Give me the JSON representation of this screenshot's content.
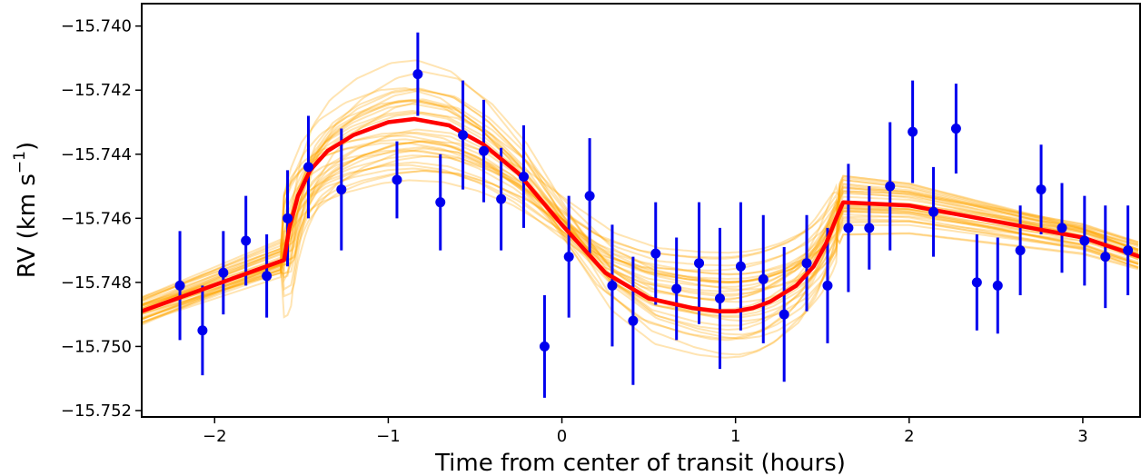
{
  "chart_data": {
    "type": "scatter",
    "xlabel": "Time from center of transit (hours)",
    "ylabel": {
      "main": "RV (km s",
      "sup": "−1",
      "close": ")"
    },
    "xlim": [
      -2.42,
      3.33
    ],
    "ylim": [
      -15.7522,
      -15.7393
    ],
    "xticks": [
      -2,
      -1,
      0,
      1,
      2,
      3
    ],
    "xtick_labels": [
      "−2",
      "−1",
      "0",
      "1",
      "2",
      "3"
    ],
    "yticks": [
      -15.74,
      -15.742,
      -15.744,
      -15.746,
      -15.748,
      -15.75,
      -15.752
    ],
    "ytick_labels": [
      "−15.740",
      "−15.742",
      "−15.744",
      "−15.746",
      "−15.748",
      "−15.750",
      "−15.752"
    ],
    "grid": false,
    "colors": {
      "data": "#0000ee",
      "model": "#ff0000",
      "samples": "#ffa500"
    },
    "series": [
      {
        "kind": "errorbar",
        "x": [
          -2.2,
          -2.07,
          -1.95,
          -1.82,
          -1.7,
          -1.58,
          -1.46,
          -1.27,
          -0.95,
          -0.83,
          -0.7,
          -0.57,
          -0.45,
          -0.35,
          -0.22,
          -0.1,
          0.04,
          0.16,
          0.29,
          0.41,
          0.54,
          0.66,
          0.79,
          0.91,
          1.03,
          1.16,
          1.28,
          1.41,
          1.53,
          1.65,
          1.77,
          1.89,
          2.02,
          2.14,
          2.27,
          2.39,
          2.51,
          2.64,
          2.76,
          2.88,
          3.01,
          3.13,
          3.26
        ],
        "y": [
          -15.7481,
          -15.7495,
          -15.7477,
          -15.7467,
          -15.7478,
          -15.746,
          -15.7444,
          -15.7451,
          -15.7448,
          -15.7415,
          -15.7455,
          -15.7434,
          -15.7439,
          -15.7454,
          -15.7447,
          -15.75,
          -15.7472,
          -15.7453,
          -15.7481,
          -15.7492,
          -15.7471,
          -15.7482,
          -15.7474,
          -15.7485,
          -15.7475,
          -15.7479,
          -15.749,
          -15.7474,
          -15.7481,
          -15.7463,
          -15.7463,
          -15.745,
          -15.7433,
          -15.7458,
          -15.7432,
          -15.748,
          -15.7481,
          -15.747,
          -15.7451,
          -15.7463,
          -15.7467,
          -15.7472,
          -15.747
        ],
        "yerr": [
          0.0017,
          0.0014,
          0.0013,
          0.0014,
          0.0013,
          0.0015,
          0.0016,
          0.0019,
          0.0012,
          0.0013,
          0.0015,
          0.0017,
          0.0016,
          0.0016,
          0.0016,
          0.0016,
          0.0019,
          0.0018,
          0.0019,
          0.002,
          0.0016,
          0.0016,
          0.0019,
          0.0022,
          0.002,
          0.002,
          0.0021,
          0.0015,
          0.0018,
          0.002,
          0.0013,
          0.002,
          0.0016,
          0.0014,
          0.0014,
          0.0015,
          0.0015,
          0.0014,
          0.0014,
          0.0014,
          0.0014,
          0.0016,
          0.0014
        ]
      },
      {
        "kind": "line",
        "x": [
          -2.42,
          -1.6,
          -1.57,
          -1.52,
          -1.45,
          -1.35,
          -1.2,
          -1.0,
          -0.85,
          -0.65,
          -0.45,
          -0.25,
          0.0,
          0.25,
          0.5,
          0.75,
          0.9,
          1.0,
          1.1,
          1.2,
          1.35,
          1.45,
          1.52,
          1.58,
          1.62,
          2.0,
          2.5,
          3.0,
          3.33
        ],
        "y": [
          -15.7489,
          -15.7473,
          -15.7463,
          -15.7453,
          -15.7445,
          -15.7439,
          -15.7434,
          -15.743,
          -15.7429,
          -15.7431,
          -15.7437,
          -15.7446,
          -15.7462,
          -15.7477,
          -15.7485,
          -15.7488,
          -15.7489,
          -15.7489,
          -15.7488,
          -15.7486,
          -15.7481,
          -15.7475,
          -15.7468,
          -15.746,
          -15.7455,
          -15.7456,
          -15.7461,
          -15.7466,
          -15.7472
        ]
      }
    ],
    "samples": {
      "kind": "posterior model samples",
      "count": 36,
      "color": "#ffa500",
      "opacity": 0.3
    }
  }
}
